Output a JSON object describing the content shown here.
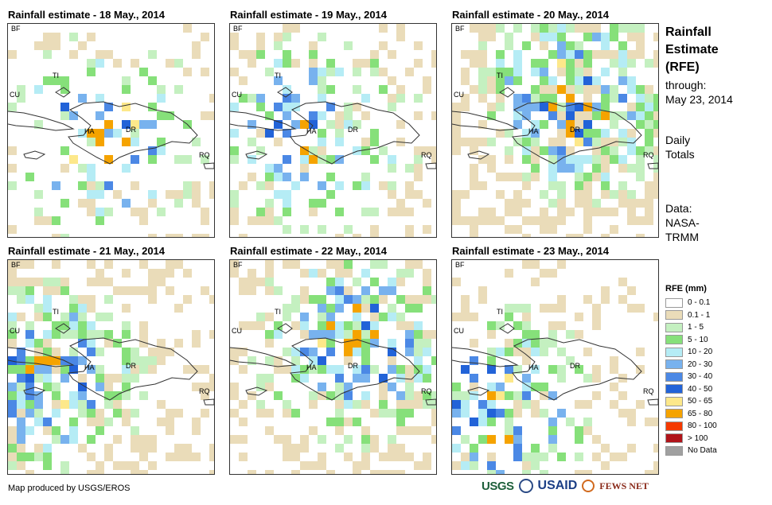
{
  "panels": [
    {
      "title": "Rainfall estimate - 18 May., 2014",
      "seed": 18
    },
    {
      "title": "Rainfall estimate - 19 May., 2014",
      "seed": 19
    },
    {
      "title": "Rainfall estimate - 20 May., 2014",
      "seed": 20
    },
    {
      "title": "Rainfall estimate - 21 May., 2014",
      "seed": 21
    },
    {
      "title": "Rainfall estimate - 22 May., 2014",
      "seed": 22
    },
    {
      "title": "Rainfall estimate - 23 May., 2014",
      "seed": 23
    }
  ],
  "map_labels": {
    "bf": "BF",
    "ti": "TI",
    "cu": "CU",
    "ha": "HA",
    "dr": "DR",
    "rq": "RQ"
  },
  "side_info": {
    "title_lines": [
      "Rainfall",
      "Estimate",
      "(RFE)"
    ],
    "through_lines": [
      "through:",
      "May 23, 2014"
    ],
    "daily_lines": [
      "Daily",
      "Totals"
    ],
    "data_lines": [
      "Data:",
      "NASA-",
      "TRMM"
    ]
  },
  "legend": {
    "title": "RFE (mm)",
    "items": [
      {
        "label": "0 - 0.1",
        "color": "#ffffff"
      },
      {
        "label": "0.1 - 1",
        "color": "#eadcb9"
      },
      {
        "label": "1 - 5",
        "color": "#c4f0c0"
      },
      {
        "label": "5 - 10",
        "color": "#86e07a"
      },
      {
        "label": "10 - 20",
        "color": "#b5ecf5"
      },
      {
        "label": "20 - 30",
        "color": "#78b2ee"
      },
      {
        "label": "30 - 40",
        "color": "#4b88e5"
      },
      {
        "label": "40 - 50",
        "color": "#2263d8"
      },
      {
        "label": "50 - 65",
        "color": "#fde88a"
      },
      {
        "label": "65 - 80",
        "color": "#f5a300"
      },
      {
        "label": "80 - 100",
        "color": "#f53a00"
      },
      {
        "label": "> 100",
        "color": "#b0141a"
      },
      {
        "label": "No Data",
        "color": "#a0a0a0"
      }
    ]
  },
  "footer": {
    "credit": "Map produced by USGS/EROS"
  },
  "logos": {
    "usgs": "USGS",
    "usaid": "USAID",
    "fews": "FEWS NET"
  }
}
